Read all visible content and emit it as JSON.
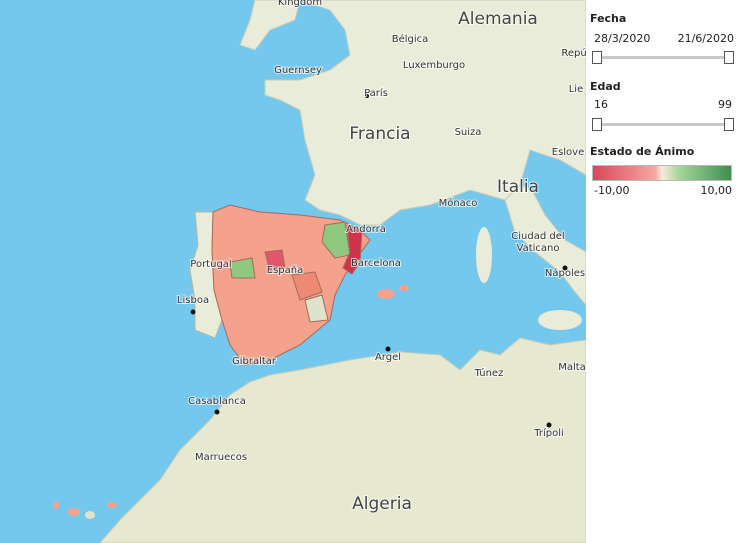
{
  "map": {
    "labels": [
      "Kingdom",
      "Alemania",
      "Bélgica",
      "Luxemburgo",
      "Guernsey",
      "París",
      "Francia",
      "Suiza",
      "Repú",
      "Lie",
      "Eslove",
      "Italia",
      "Mónaco",
      "Andorra",
      "Barcelona",
      "Portugal",
      "España",
      "Lisboa",
      "Ciudad del",
      "Vaticano",
      "Nápoles",
      "Gibraltar",
      "Argel",
      "Túnez",
      "Malta",
      "Casablanca",
      "Trípoli",
      "Marruecos",
      "Algeria"
    ]
  },
  "filters": {
    "fecha": {
      "title": "Fecha",
      "min": "28/3/2020",
      "max": "21/6/2020"
    },
    "edad": {
      "title": "Edad",
      "min": "16",
      "max": "99"
    },
    "legend": {
      "title": "Estado de Ánimo",
      "min": "-10,00",
      "max": "10,00"
    }
  }
}
